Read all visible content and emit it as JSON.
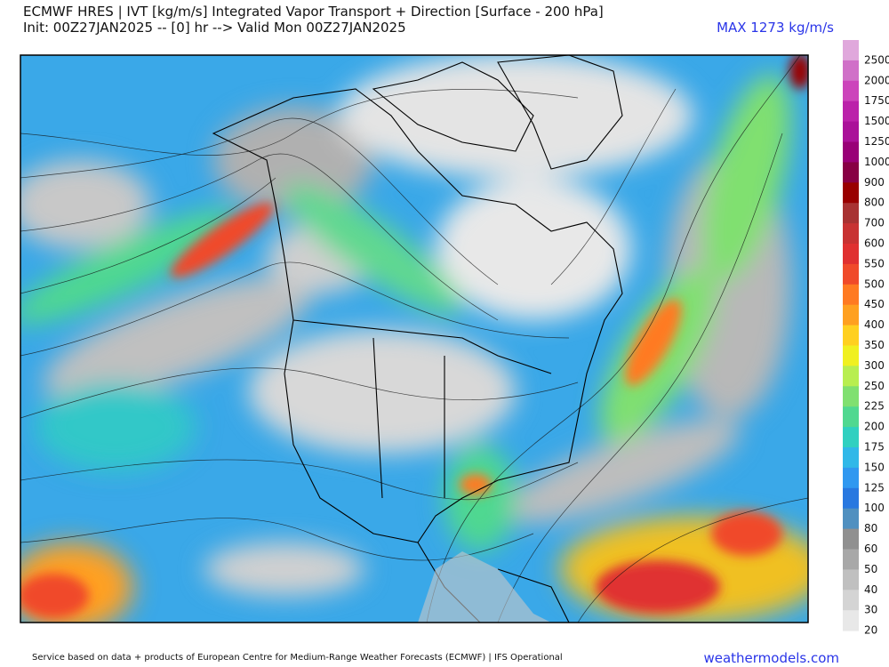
{
  "header": {
    "title": "ECMWF HRES | IVT [kg/m/s] Integrated Vapor Transport + Direction [Surface - 200 hPa]",
    "subtitle": "Init: 00Z27JAN2025 -- [0] hr --> Valid Mon 00Z27JAN2025",
    "max_label": "MAX 1273 kg/m/s"
  },
  "colorbar": {
    "labels": [
      2500,
      2000,
      1750,
      1500,
      1250,
      1000,
      900,
      800,
      700,
      600,
      550,
      500,
      450,
      400,
      350,
      300,
      250,
      225,
      200,
      175,
      150,
      125,
      100,
      80,
      60,
      50,
      40,
      30,
      20
    ],
    "colors": [
      "#e0a8dc",
      "#d070c8",
      "#cc44bb",
      "#bb22aa",
      "#aa1199",
      "#990077",
      "#880044",
      "#990000",
      "#a83232",
      "#c83232",
      "#e03030",
      "#f04a2a",
      "#ff7a22",
      "#ffa020",
      "#ffd020",
      "#f0f020",
      "#b8ee50",
      "#80e070",
      "#50d890",
      "#30d0c0",
      "#30b8e8",
      "#3098f0",
      "#2878e0",
      "#5090c0",
      "#909090",
      "#a8a8a8",
      "#c0c0c0",
      "#d4d4d4",
      "#e8e8e8"
    ]
  },
  "footer": {
    "credit": "Service based on data + products of European Centre for Medium-Range Weather Forecasts (ECMWF) | IFS Operational",
    "brand": "weathermodels.com"
  }
}
